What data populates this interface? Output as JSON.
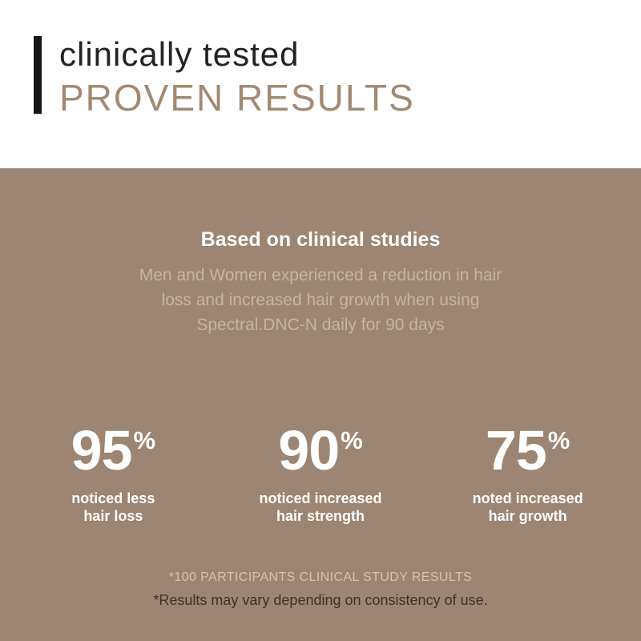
{
  "header": {
    "eyebrow": "clinically tested",
    "title": "PROVEN RESULTS",
    "accent_bar_color": "#161616",
    "eyebrow_color": "#262223",
    "title_color": "#a28a72"
  },
  "hero": {
    "bg_color": "#9c8573",
    "heading": "Based on clinical studies",
    "description_lines": {
      "line1": "Men and Women experienced a reduction in hair",
      "line2": "loss and increased hair growth when using",
      "line3": "Spectral.DNC-N daily for 90 days"
    },
    "description_color": "#c4b5a6",
    "stats": [
      {
        "value": "95",
        "unit": "%",
        "label_line1": "noticed less",
        "label_line2": "hair loss"
      },
      {
        "value": "90",
        "unit": "%",
        "label_line1": "noticed increased",
        "label_line2": "hair strength"
      },
      {
        "value": "75",
        "unit": "%",
        "label_line1": "noted increased",
        "label_line2": "hair growth"
      }
    ],
    "stat_text_color": "#ffffff",
    "footnote_primary": "*100 PARTICIPANTS CLINICAL STUDY RESULTS",
    "footnote_primary_color": "#d2c4b3",
    "footnote_secondary": "*Results may vary depending on consistency of use.",
    "footnote_secondary_color": "#3d332b"
  }
}
